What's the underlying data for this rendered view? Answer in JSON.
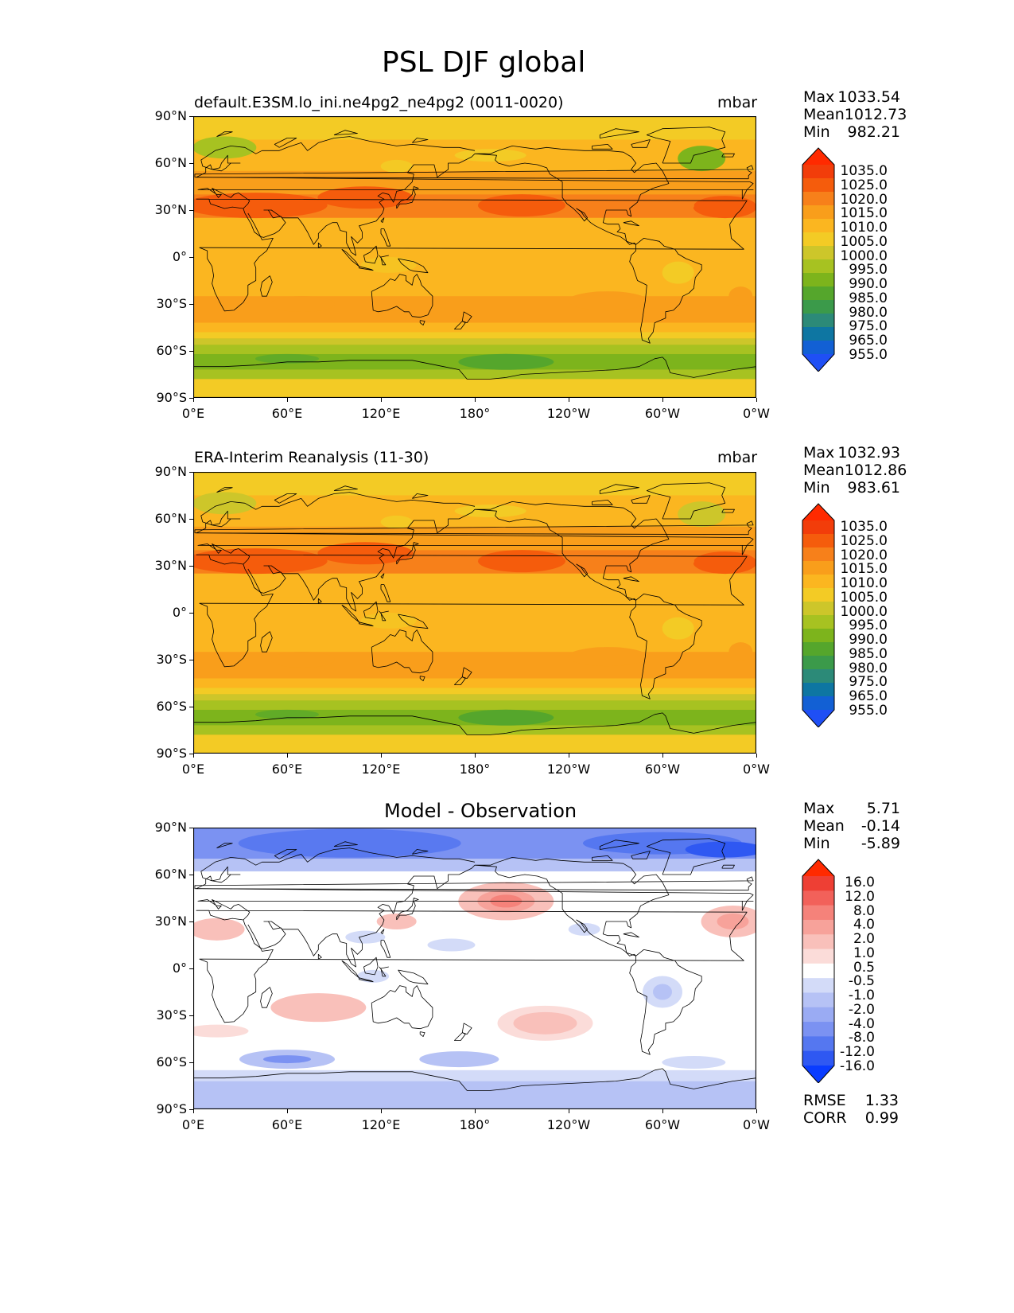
{
  "title": "PSL DJF global",
  "panels": [
    {
      "id": "test",
      "title": "default.E3SM.lo_ini.ne4pg2_ne4pg2 (0011-0020)",
      "units": "mbar",
      "stats": {
        "Max": "1033.54",
        "Mean": "1012.73",
        "Min": "982.21"
      },
      "colorbar_labels": [
        "1035.0",
        "1025.0",
        "1020.0",
        "1015.0",
        "1010.0",
        "1005.0",
        "1000.0",
        "995.0",
        "990.0",
        "985.0",
        "980.0",
        "975.0",
        "965.0",
        "955.0"
      ]
    },
    {
      "id": "reference",
      "title": "ERA-Interim Reanalysis (11-30)",
      "units": "mbar",
      "stats": {
        "Max": "1032.93",
        "Mean": "1012.86",
        "Min": "983.61"
      },
      "colorbar_labels": [
        "1035.0",
        "1025.0",
        "1020.0",
        "1015.0",
        "1010.0",
        "1005.0",
        "1000.0",
        "995.0",
        "990.0",
        "985.0",
        "980.0",
        "975.0",
        "965.0",
        "955.0"
      ]
    },
    {
      "id": "diff",
      "title": "Model - Observation",
      "units": "",
      "stats": {
        "Max": "5.71",
        "Mean": "-0.14",
        "Min": "-5.89"
      },
      "colorbar_labels": [
        "16.0",
        "12.0",
        "8.0",
        "4.0",
        "2.0",
        "1.0",
        "0.5",
        "-0.5",
        "-1.0",
        "-2.0",
        "-4.0",
        "-8.0",
        "-12.0",
        "-16.0"
      ],
      "metrics": {
        "RMSE": "1.33",
        "CORR": "0.99"
      }
    }
  ],
  "axes": {
    "lat_ticks": [
      "90°N",
      "60°N",
      "30°N",
      "0°",
      "30°S",
      "60°S",
      "90°S"
    ],
    "lon_ticks": [
      "0°E",
      "60°E",
      "120°E",
      "180°",
      "120°W",
      "60°W",
      "0°W"
    ]
  },
  "colors": {
    "psl_scale": [
      "#1f4ff5",
      "#1260d4",
      "#0e76a2",
      "#2c8a78",
      "#3b9a4a",
      "#55a62c",
      "#7db41c",
      "#a7c221",
      "#cdc62a",
      "#f3cb25",
      "#fbb620",
      "#f99e1b",
      "#f7801a",
      "#f55c0c",
      "#f23d0a",
      "#ff2a00"
    ],
    "diff_scale": [
      "#0a3cff",
      "#2f58f2",
      "#5577f0",
      "#7b92f2",
      "#9aabf3",
      "#b6c2f5",
      "#d3dbf8",
      "#ffffff",
      "#fbdcd9",
      "#f9c0ba",
      "#f7a29a",
      "#f5827a",
      "#f2615a",
      "#ee3f34",
      "#ff2a00"
    ]
  }
}
